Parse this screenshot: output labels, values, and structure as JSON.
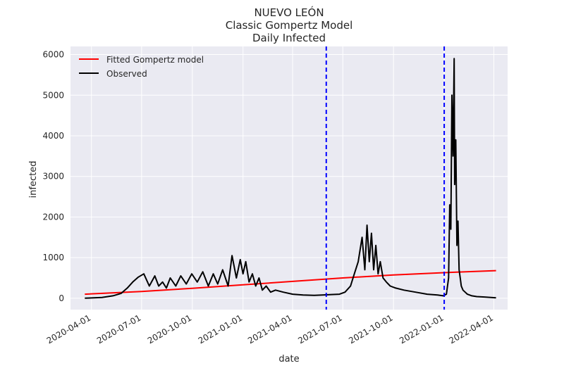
{
  "chart_data": {
    "type": "line",
    "title": [
      "NUEVO LEÓN",
      "Classic Gompertz Model",
      "Daily Infected"
    ],
    "xlabel": "date",
    "ylabel": "infected",
    "xlim": [
      "2020-02-23",
      "2022-04-26"
    ],
    "ylim": [
      -280,
      6200
    ],
    "x_ticks": [
      "2020-04-01",
      "2020-07-01",
      "2020-10-01",
      "2021-01-01",
      "2021-04-01",
      "2021-07-01",
      "2021-10-01",
      "2022-01-01",
      "2022-04-01"
    ],
    "y_ticks": [
      0,
      1000,
      2000,
      3000,
      4000,
      5000,
      6000
    ],
    "grid": true,
    "legend_position": "upper left",
    "series": [
      {
        "name": "Fitted Gompertz model",
        "color": "#ff0000",
        "style": "solid",
        "x": [
          "2020-03-20",
          "2020-07-01",
          "2020-10-01",
          "2021-01-01",
          "2021-04-01",
          "2021-07-01",
          "2021-10-01",
          "2022-01-01",
          "2022-04-05"
        ],
        "values": [
          100,
          165,
          245,
          330,
          415,
          500,
          575,
          630,
          680
        ]
      },
      {
        "name": "Observed",
        "color": "#000000",
        "style": "solid",
        "x": [
          "2020-03-20",
          "2020-04-20",
          "2020-05-10",
          "2020-05-25",
          "2020-06-05",
          "2020-06-15",
          "2020-06-25",
          "2020-07-05",
          "2020-07-15",
          "2020-07-25",
          "2020-08-01",
          "2020-08-08",
          "2020-08-15",
          "2020-08-22",
          "2020-09-01",
          "2020-09-10",
          "2020-09-20",
          "2020-09-30",
          "2020-10-10",
          "2020-10-20",
          "2020-10-30",
          "2020-11-08",
          "2020-11-16",
          "2020-11-25",
          "2020-12-05",
          "2020-12-12",
          "2020-12-20",
          "2020-12-27",
          "2021-01-01",
          "2021-01-06",
          "2021-01-12",
          "2021-01-18",
          "2021-01-24",
          "2021-01-30",
          "2021-02-05",
          "2021-02-12",
          "2021-02-20",
          "2021-03-01",
          "2021-03-15",
          "2021-04-01",
          "2021-04-20",
          "2021-05-10",
          "2021-05-25",
          "2021-06-10",
          "2021-06-25",
          "2021-07-05",
          "2021-07-15",
          "2021-07-22",
          "2021-07-29",
          "2021-08-05",
          "2021-08-10",
          "2021-08-14",
          "2021-08-18",
          "2021-08-22",
          "2021-08-26",
          "2021-08-30",
          "2021-09-03",
          "2021-09-07",
          "2021-09-12",
          "2021-09-18",
          "2021-09-25",
          "2021-10-05",
          "2021-10-20",
          "2021-11-10",
          "2021-12-01",
          "2021-12-20",
          "2021-12-30",
          "2022-01-05",
          "2022-01-09",
          "2022-01-11",
          "2022-01-13",
          "2022-01-15",
          "2022-01-17",
          "2022-01-19",
          "2022-01-20",
          "2022-01-22",
          "2022-01-24",
          "2022-01-26",
          "2022-01-28",
          "2022-01-30",
          "2022-02-01",
          "2022-02-04",
          "2022-02-08",
          "2022-02-12",
          "2022-02-20",
          "2022-03-01",
          "2022-03-15",
          "2022-04-05"
        ],
        "values": [
          0,
          20,
          60,
          120,
          250,
          400,
          520,
          600,
          300,
          550,
          300,
          400,
          250,
          500,
          300,
          550,
          350,
          600,
          400,
          650,
          300,
          600,
          350,
          700,
          300,
          1050,
          500,
          950,
          600,
          900,
          400,
          600,
          300,
          500,
          200,
          300,
          150,
          200,
          150,
          100,
          80,
          70,
          80,
          90,
          100,
          150,
          300,
          600,
          900,
          1500,
          700,
          1800,
          900,
          1600,
          700,
          1300,
          600,
          900,
          500,
          400,
          300,
          250,
          200,
          150,
          100,
          80,
          60,
          100,
          500,
          2300,
          1700,
          5000,
          3500,
          5900,
          2800,
          3900,
          1300,
          1900,
          700,
          500,
          300,
          200,
          150,
          100,
          60,
          40,
          30,
          10
        ]
      },
      {
        "name": "",
        "color": "#0000ff",
        "style": "dashed",
        "vertical_line_at": "2021-06-01"
      },
      {
        "name": "",
        "color": "#0000ff",
        "style": "dashed",
        "vertical_line_at": "2022-01-01"
      }
    ]
  }
}
